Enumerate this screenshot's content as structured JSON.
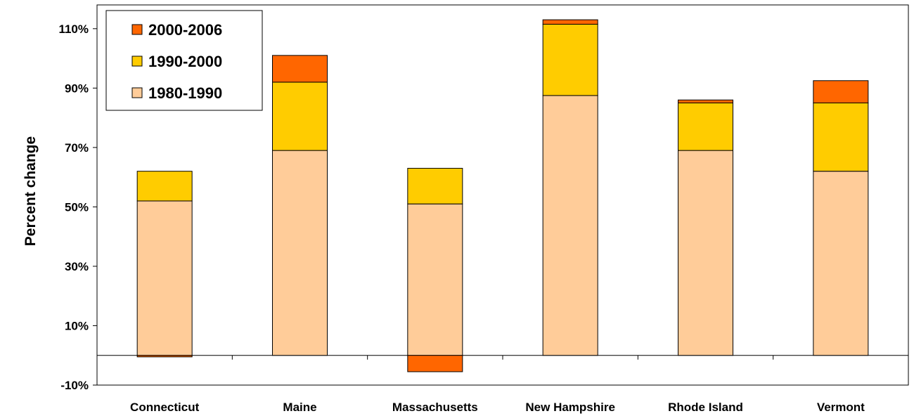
{
  "chart_data": {
    "type": "bar",
    "stacked": true,
    "title": "",
    "xlabel": "",
    "ylabel": "Percent change",
    "ylim": [
      -0.1,
      1.18
    ],
    "yticks": [
      -0.1,
      0.1,
      0.3,
      0.5,
      0.7,
      0.9,
      1.1
    ],
    "ytick_labels": [
      "-10%",
      "10%",
      "30%",
      "50%",
      "70%",
      "90%",
      "110%"
    ],
    "grid": false,
    "legend_position": "top-left",
    "categories": [
      "Connecticut",
      "Maine",
      "Massachusetts",
      "New Hampshire",
      "Rhode Island",
      "Vermont"
    ],
    "series": [
      {
        "name": "1980-1990",
        "color": "#FFCC99",
        "values": [
          0.52,
          0.69,
          0.51,
          0.875,
          0.69,
          0.62
        ]
      },
      {
        "name": "1990-2000",
        "color": "#FFCC00",
        "values": [
          0.1,
          0.23,
          0.12,
          0.24,
          0.16,
          0.23
        ]
      },
      {
        "name": "2000-2006",
        "color": "#FF6600",
        "values": [
          -0.005,
          0.09,
          -0.055,
          0.015,
          0.01,
          0.075
        ]
      }
    ],
    "legend_order": [
      "2000-2006",
      "1990-2000",
      "1980-1990"
    ]
  }
}
